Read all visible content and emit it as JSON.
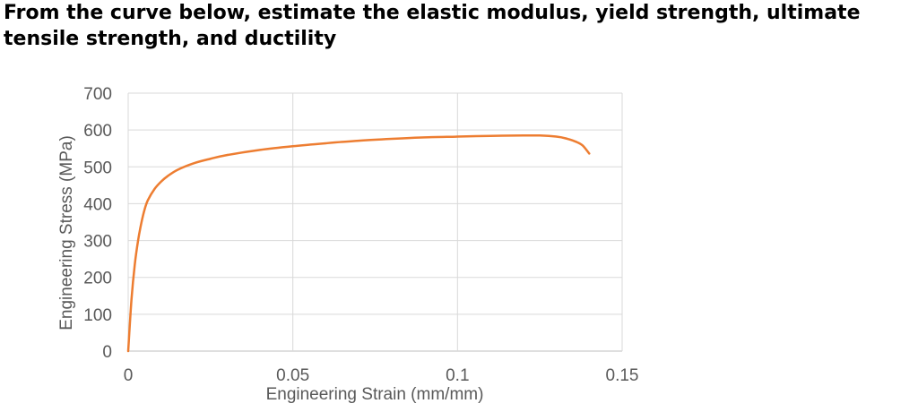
{
  "question": "From the curve below, estimate the elastic modulus, yield strength, ultimate tensile strength, and ductility",
  "colors": {
    "curve": "#ED7D31",
    "grid": "#D9D9D9",
    "text": "#595959"
  },
  "chart_data": {
    "type": "line",
    "title": "",
    "xlabel": "Engineering Strain (mm/mm)",
    "ylabel": "Engineering Stress (MPa)",
    "xlim": [
      0,
      0.15
    ],
    "ylim": [
      0,
      700
    ],
    "xticks": [
      "0",
      "0.05",
      "0.1",
      "0.15"
    ],
    "yticks": [
      "0",
      "100",
      "200",
      "300",
      "400",
      "500",
      "600",
      "700"
    ],
    "grid": true,
    "legend": "none",
    "series": [
      {
        "x": [
          0,
          0.001,
          0.002,
          0.003,
          0.004,
          0.005,
          0.006,
          0.008,
          0.01,
          0.012,
          0.015,
          0.02,
          0.025,
          0.03,
          0.04,
          0.05,
          0.06,
          0.07,
          0.08,
          0.09,
          0.1,
          0.11,
          0.12,
          0.125,
          0.13,
          0.133,
          0.136,
          0.138,
          0.14
        ],
        "y": [
          0,
          140,
          235,
          300,
          348,
          385,
          410,
          440,
          460,
          475,
          492,
          510,
          522,
          532,
          546,
          556,
          564,
          571,
          576,
          580,
          582,
          584,
          585,
          585,
          582,
          577,
          568,
          558,
          536
        ]
      }
    ]
  }
}
